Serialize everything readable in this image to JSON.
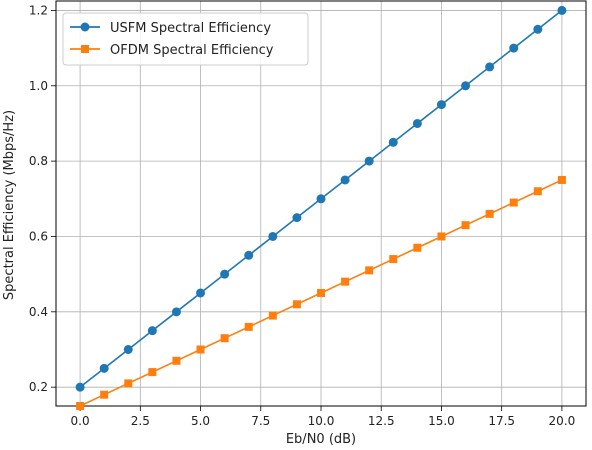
{
  "chart_data": {
    "type": "line",
    "title": "",
    "xlabel": "Eb/N0 (dB)",
    "ylabel": "Spectral Efficiency (Mbps/Hz)",
    "xlim": [
      -1.0,
      21.0
    ],
    "ylim": [
      0.15,
      1.225
    ],
    "xticks": [
      0.0,
      2.5,
      5.0,
      7.5,
      10.0,
      12.5,
      15.0,
      17.5,
      20.0
    ],
    "xtick_labels": [
      "0.0",
      "2.5",
      "5.0",
      "7.5",
      "10.0",
      "12.5",
      "15.0",
      "17.5",
      "20.0"
    ],
    "yticks": [
      0.2,
      0.4,
      0.6,
      0.8,
      1.0,
      1.2
    ],
    "ytick_labels": [
      "0.2",
      "0.4",
      "0.6",
      "0.8",
      "1.0",
      "1.2"
    ],
    "grid": true,
    "legend_position": "top-left",
    "x": [
      0,
      1,
      2,
      3,
      4,
      5,
      6,
      7,
      8,
      9,
      10,
      11,
      12,
      13,
      14,
      15,
      16,
      17,
      18,
      19,
      20
    ],
    "series": [
      {
        "name": "USFM Spectral Efficiency",
        "color": "#1f77b4",
        "marker": "circle",
        "values": [
          0.2,
          0.25,
          0.3,
          0.35,
          0.4,
          0.45,
          0.5,
          0.55,
          0.6,
          0.65,
          0.7,
          0.75,
          0.8,
          0.85,
          0.9,
          0.95,
          1.0,
          1.05,
          1.1,
          1.15,
          1.2
        ]
      },
      {
        "name": "OFDM Spectral Efficiency",
        "color": "#ff7f0e",
        "marker": "square",
        "values": [
          0.15,
          0.18,
          0.21,
          0.24,
          0.27,
          0.3,
          0.33,
          0.36,
          0.39,
          0.42,
          0.45,
          0.48,
          0.51,
          0.54,
          0.57,
          0.6,
          0.63,
          0.66,
          0.69,
          0.72,
          0.75
        ]
      }
    ]
  }
}
